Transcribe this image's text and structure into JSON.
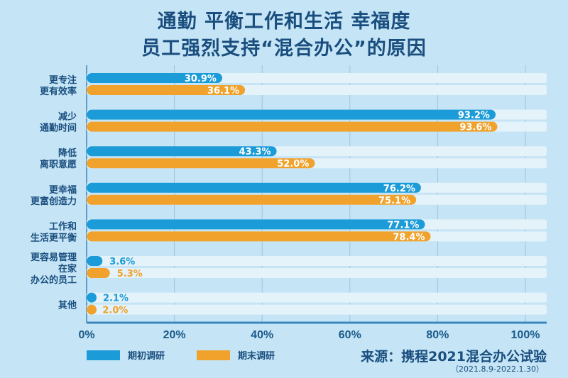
{
  "chart_data": {
    "type": "bar",
    "orientation": "horizontal",
    "title": "通勤 平衡工作和生活 幸福度",
    "subtitle": "员工强烈支持“混合办公”的原因",
    "categories": [
      [
        "更专注",
        "更有效率"
      ],
      [
        "减少",
        "通勤时间"
      ],
      [
        "降低",
        "离职意愿"
      ],
      [
        "更幸福",
        "更富创造力"
      ],
      [
        "工作和",
        "生活更平衡"
      ],
      [
        "更容易管理",
        "在家",
        "办公的员工"
      ],
      [
        "其他"
      ]
    ],
    "series": [
      {
        "name": "期初调研",
        "color": "#1b9bd8",
        "values": [
          30.9,
          93.2,
          43.3,
          76.2,
          77.1,
          3.6,
          2.1
        ]
      },
      {
        "name": "期末调研",
        "color": "#f0a22c",
        "values": [
          36.1,
          93.6,
          52.0,
          75.1,
          78.4,
          5.3,
          2.0
        ]
      }
    ],
    "xlim": [
      0,
      100
    ],
    "xticks": [
      "0%",
      "20%",
      "40%",
      "60%",
      "80%",
      "100%"
    ],
    "grid": true,
    "legend": "bottom-left",
    "source": "来源：携程2021混合办公试验",
    "source_date": "（2021.8.9-2022.1.30）"
  }
}
